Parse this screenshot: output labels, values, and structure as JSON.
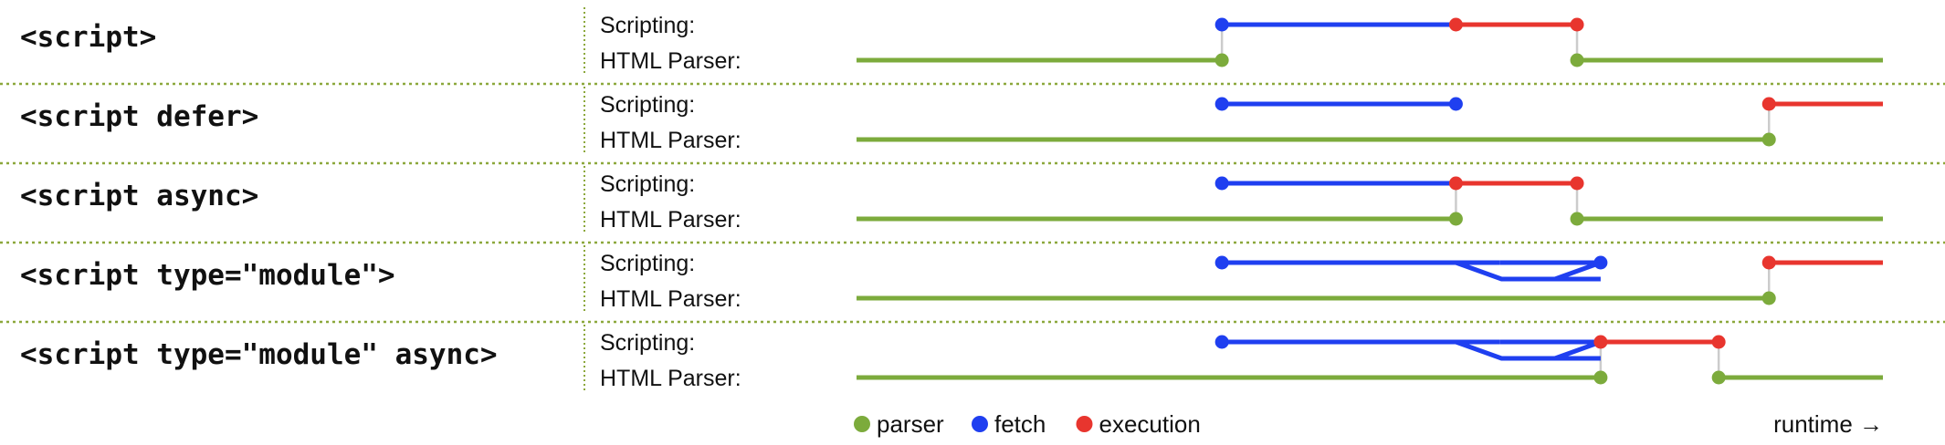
{
  "colors": {
    "parser": "#7cab3c",
    "fetch": "#1f3ff0",
    "execution": "#e8352e",
    "divider": "#8ca83c",
    "connector": "#cccccc",
    "text": "#111111"
  },
  "tracks": {
    "scripting": "Scripting:",
    "parser": "HTML Parser:"
  },
  "rows": [
    {
      "label": "<script>",
      "segments": [
        {
          "kind": "parser",
          "track": "parser",
          "from": 0,
          "to": 0.356
        },
        {
          "kind": "fetch",
          "track": "scripting",
          "from": 0.356,
          "to": 0.584
        },
        {
          "kind": "execution",
          "track": "scripting",
          "from": 0.584,
          "to": 0.702
        },
        {
          "kind": "parser",
          "track": "parser",
          "from": 0.702,
          "to": 1
        }
      ],
      "fetchBranch": null,
      "connectors": [
        0.356,
        0.702
      ]
    },
    {
      "label": "<script defer>",
      "segments": [
        {
          "kind": "parser",
          "track": "parser",
          "from": 0,
          "to": 0.889
        },
        {
          "kind": "fetch",
          "track": "scripting",
          "from": 0.356,
          "to": 0.584
        },
        {
          "kind": "execution",
          "track": "scripting",
          "from": 0.889,
          "to": 1
        }
      ],
      "fetchBranch": null,
      "connectors": [
        0.889
      ]
    },
    {
      "label": "<script async>",
      "segments": [
        {
          "kind": "parser",
          "track": "parser",
          "from": 0,
          "to": 0.584
        },
        {
          "kind": "fetch",
          "track": "scripting",
          "from": 0.356,
          "to": 0.584
        },
        {
          "kind": "execution",
          "track": "scripting",
          "from": 0.584,
          "to": 0.702
        },
        {
          "kind": "parser",
          "track": "parser",
          "from": 0.702,
          "to": 1
        }
      ],
      "fetchBranch": null,
      "connectors": [
        0.584,
        0.702
      ]
    },
    {
      "label": "<script type=\"module\">",
      "segments": [
        {
          "kind": "fetch",
          "track": "scripting",
          "from": 0.356,
          "to": 0.627
        },
        {
          "kind": "parser",
          "track": "parser",
          "from": 0,
          "to": 0.889
        },
        {
          "kind": "execution",
          "track": "scripting",
          "from": 0.889,
          "to": 1
        }
      ],
      "fetchBranch": {
        "split": 0.584,
        "end": 0.627,
        "low": 0.627,
        "join": 0.725
      },
      "connectors": [
        0.889
      ]
    },
    {
      "label": "<script type=\"module\" async>",
      "segments": [
        {
          "kind": "fetch",
          "track": "scripting",
          "from": 0.356,
          "to": 0.627
        },
        {
          "kind": "parser",
          "track": "parser",
          "from": 0,
          "to": 0.725
        },
        {
          "kind": "execution",
          "track": "scripting",
          "from": 0.725,
          "to": 0.84
        },
        {
          "kind": "parser",
          "track": "parser",
          "from": 0.84,
          "to": 1
        }
      ],
      "fetchBranch": {
        "split": 0.584,
        "end": 0.627,
        "low": 0.627,
        "join": 0.725
      },
      "connectors": [
        0.725,
        0.84
      ]
    }
  ],
  "legend": [
    {
      "kind": "parser",
      "label": "parser"
    },
    {
      "kind": "fetch",
      "label": "fetch"
    },
    {
      "kind": "execution",
      "label": "execution"
    }
  ],
  "runtime_label": "runtime →"
}
